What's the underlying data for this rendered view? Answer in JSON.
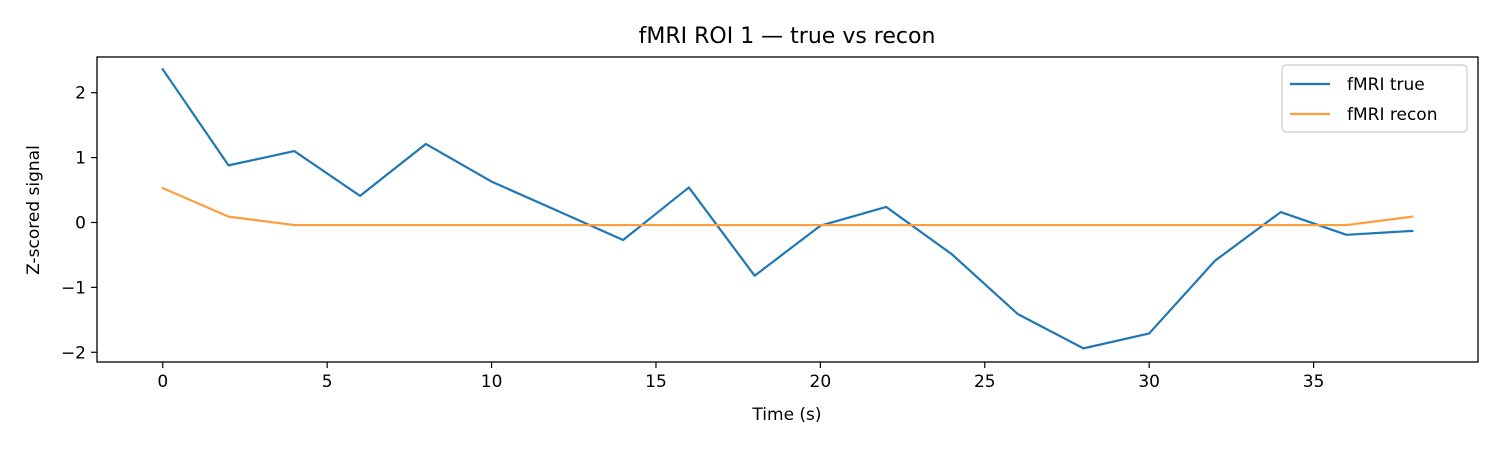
{
  "chart_data": {
    "type": "line",
    "title": "fMRI ROI 1 — true vs recon",
    "xlabel": "Time (s)",
    "ylabel": "Z-scored signal",
    "xlim": [
      -2,
      40
    ],
    "ylim": [
      -2.15,
      2.55
    ],
    "xticks": [
      0,
      5,
      10,
      15,
      20,
      25,
      30,
      35
    ],
    "xtick_labels": [
      "0",
      "5",
      "10",
      "15",
      "20",
      "25",
      "30",
      "35"
    ],
    "yticks": [
      -2,
      -1,
      0,
      1,
      2
    ],
    "ytick_labels": [
      "−2",
      "−1",
      "0",
      "1",
      "2"
    ],
    "grid": false,
    "legend_position": "upper right",
    "x": [
      0,
      2,
      4,
      6,
      8,
      10,
      12,
      14,
      16,
      18,
      20,
      22,
      24,
      26,
      28,
      30,
      32,
      34,
      36,
      38
    ],
    "series": [
      {
        "name": "fMRI true",
        "color": "#1f77b4",
        "values": [
          2.36,
          0.88,
          1.1,
          0.41,
          1.21,
          0.63,
          0.18,
          -0.27,
          0.54,
          -0.82,
          -0.05,
          0.24,
          -0.49,
          -1.41,
          -1.94,
          -1.71,
          -0.59,
          0.16,
          -0.19,
          -0.13
        ]
      },
      {
        "name": "fMRI recon",
        "color": "#ff9d3d",
        "values": [
          0.53,
          0.09,
          -0.04,
          -0.04,
          -0.04,
          -0.04,
          -0.04,
          -0.04,
          -0.04,
          -0.04,
          -0.04,
          -0.04,
          -0.04,
          -0.04,
          -0.04,
          -0.04,
          -0.04,
          -0.04,
          -0.04,
          0.09
        ]
      }
    ]
  }
}
